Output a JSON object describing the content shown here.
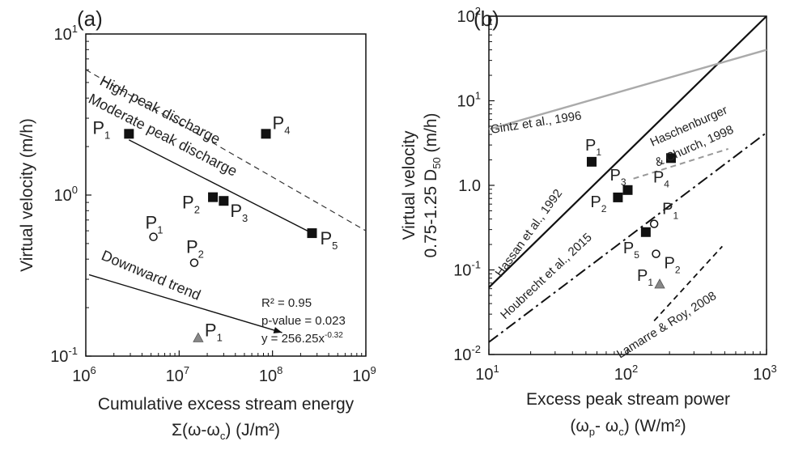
{
  "chart_data": [
    {
      "panel": "(a)",
      "type": "scatter",
      "xscale": "log",
      "yscale": "log",
      "xlim": [
        1000000,
        1000000000
      ],
      "ylim": [
        0.1,
        10
      ],
      "xlabel": "Cumulative excess stream energy",
      "xlabel2": "Σ(ω-ω",
      "xlabel2_sub": "c",
      "xlabel2_end": ") (J/m²)",
      "ylabel": "Virtual velocity (m/h)",
      "xticks": [
        {
          "value": 1000000,
          "base": "10",
          "exp": "6"
        },
        {
          "value": 10000000,
          "base": "10",
          "exp": "7"
        },
        {
          "value": 100000000,
          "base": "10",
          "exp": "8"
        },
        {
          "value": 1000000000,
          "base": "10",
          "exp": "9"
        }
      ],
      "yticks": [
        {
          "value": 10,
          "base": "10",
          "exp": "1"
        },
        {
          "value": 1,
          "base": "10",
          "exp": "0"
        },
        {
          "value": 0.1,
          "base": "10",
          "exp": "-1"
        }
      ],
      "grid": false,
      "series": [
        {
          "marker": "square-filled",
          "color": "#111111",
          "points": [
            {
              "x": 2900000,
              "y": 2.4,
              "label": "P",
              "sub": "1"
            },
            {
              "x": 23000000,
              "y": 0.97,
              "label": "P",
              "sub": "2"
            },
            {
              "x": 30000000,
              "y": 0.92,
              "label": "P",
              "sub": "3"
            },
            {
              "x": 85000000,
              "y": 2.4,
              "label": "P",
              "sub": "4"
            },
            {
              "x": 265000000,
              "y": 0.58,
              "label": "P",
              "sub": "5"
            }
          ]
        },
        {
          "marker": "circle-open",
          "color": "#111111",
          "points": [
            {
              "x": 5300000,
              "y": 0.55,
              "label": "P",
              "sub": "1"
            },
            {
              "x": 14500000,
              "y": 0.38,
              "label": "P",
              "sub": "2"
            }
          ]
        },
        {
          "marker": "triangle-filled",
          "color": "#888888",
          "points": [
            {
              "x": 16000000,
              "y": 0.13,
              "label": "P",
              "sub": "1"
            }
          ]
        }
      ],
      "lines": [
        {
          "kind": "dashed",
          "color": "#333333",
          "x": [
            1000000,
            1000000000
          ],
          "y": [
            6.0,
            0.6
          ],
          "label": "High peak discharge"
        },
        {
          "kind": "solid",
          "color": "#111111",
          "x": [
            2900000,
            265000000
          ],
          "y": [
            2.2,
            0.58
          ],
          "label": "Moderate peak discharge"
        }
      ],
      "arrow": {
        "label": "Downward trend",
        "x": [
          1000000,
          85000000
        ],
        "y": [
          0.32,
          0.14
        ]
      },
      "annotations": [
        "R² = 0.95",
        "p-value = 0.023",
        "y = 256.25x"
      ],
      "annotation_exp": "-0.32"
    },
    {
      "panel": "(b)",
      "type": "scatter",
      "xscale": "log",
      "yscale": "log",
      "xlim": [
        10,
        1000
      ],
      "ylim": [
        0.01,
        100
      ],
      "xlabel": "Excess peak stream power",
      "xlabel2": "(ω",
      "xlabel2_sub1": "p",
      "xlabel2_mid": "- ω",
      "xlabel2_sub2": "c",
      "xlabel2_end": ") (W/m²)",
      "ylabel_line1": "Virtual velocity",
      "ylabel_line2": "0.75-1.25 D",
      "ylabel_sub": "50",
      "ylabel_end": " (m/h)",
      "xticks": [
        {
          "value": 10,
          "base": "10",
          "exp": "1"
        },
        {
          "value": 100,
          "base": "10",
          "exp": "2"
        },
        {
          "value": 1000,
          "base": "10",
          "exp": "3"
        }
      ],
      "yticks": [
        {
          "value": 100,
          "base": "10",
          "exp": "2"
        },
        {
          "value": 10,
          "base": "10",
          "exp": "1"
        },
        {
          "value": 1,
          "base": "1.0",
          "exp": ""
        },
        {
          "value": 0.1,
          "base": "10",
          "exp": "-1"
        },
        {
          "value": 0.01,
          "base": "10",
          "exp": "-2"
        }
      ],
      "grid": false,
      "series": [
        {
          "marker": "square-filled",
          "color": "#111111",
          "points": [
            {
              "x": 55,
              "y": 1.9,
              "label": "P",
              "sub": "1"
            },
            {
              "x": 85,
              "y": 0.72,
              "label": "P",
              "sub": "2"
            },
            {
              "x": 100,
              "y": 0.88,
              "label": "P",
              "sub": "3"
            },
            {
              "x": 205,
              "y": 2.1,
              "label": "P",
              "sub": "4"
            },
            {
              "x": 135,
              "y": 0.28,
              "label": "P",
              "sub": "5"
            }
          ]
        },
        {
          "marker": "circle-open",
          "color": "#111111",
          "points": [
            {
              "x": 155,
              "y": 0.35,
              "label": "P",
              "sub": "1"
            },
            {
              "x": 160,
              "y": 0.155,
              "label": "P",
              "sub": "2"
            }
          ]
        },
        {
          "marker": "triangle-filled",
          "color": "#888888",
          "points": [
            {
              "x": 170,
              "y": 0.068,
              "label": "P",
              "sub": "1"
            }
          ]
        }
      ],
      "lines": [
        {
          "kind": "solid",
          "color": "#111111",
          "x": [
            10,
            1000
          ],
          "y": [
            0.062,
            100
          ],
          "label": "Hassan et al., 1992"
        },
        {
          "kind": "solid",
          "color": "#aaaaaa",
          "x": [
            10,
            1000
          ],
          "y": [
            4.6,
            40
          ],
          "label": "Gintz et al., 1996"
        },
        {
          "kind": "dashdot",
          "color": "#111111",
          "x": [
            10,
            1000
          ],
          "y": [
            0.014,
            4.2
          ],
          "label": "Houbrecht et al., 2015"
        },
        {
          "kind": "dashed",
          "color": "#999999",
          "x": [
            110,
            530
          ],
          "y": [
            1.2,
            2.7
          ],
          "label": "Haschenburger & Church, 1998"
        },
        {
          "kind": "dashed",
          "color": "#111111",
          "x": [
            155,
            480
          ],
          "y": [
            0.025,
            0.19
          ],
          "label": "Lamarre & Roy, 2008"
        }
      ]
    }
  ]
}
